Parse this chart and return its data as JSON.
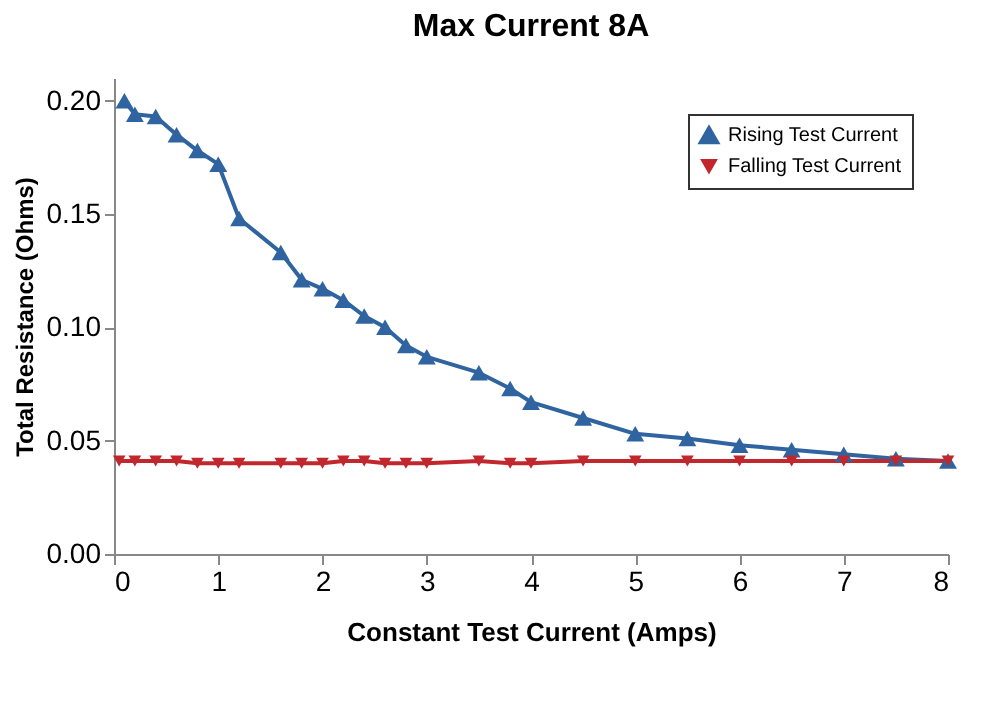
{
  "chart_data": {
    "type": "line",
    "title": "Max Current 8A",
    "xlabel": "Constant Test Current (Amps)",
    "ylabel": "Total Resistance (Ohms)",
    "xlim": [
      0,
      8
    ],
    "xticks": [
      0,
      1,
      2,
      3,
      4,
      5,
      6,
      7,
      8
    ],
    "ylim": [
      0,
      0.21
    ],
    "yticks": [
      {
        "value": 0,
        "label": "0.00"
      },
      0.05,
      {
        "value": 0.1,
        "label": "0.10"
      },
      0.15,
      {
        "value": 0.2,
        "label": "0.20"
      }
    ],
    "grid": false,
    "legend": "top right",
    "line_style": "solid",
    "series": [
      {
        "name": "Rising Test Current",
        "color": "#2f64a0",
        "marker": "triangle",
        "x": [
          0.1,
          0.2,
          0.4,
          0.6,
          0.8,
          1.0,
          1.2,
          1.6,
          1.8,
          2.0,
          2.2,
          2.4,
          2.6,
          2.8,
          3.0,
          3.5,
          3.8,
          4.0,
          4.5,
          5.0,
          5.5,
          6.0,
          6.5,
          7.0,
          7.5,
          8.0
        ],
        "values": [
          0.2,
          0.194,
          0.193,
          0.185,
          0.178,
          0.172,
          0.148,
          0.133,
          0.121,
          0.117,
          0.112,
          0.105,
          0.1,
          0.092,
          0.087,
          0.08,
          0.073,
          0.067,
          0.06,
          0.053,
          0.051,
          0.048,
          0.046,
          0.044,
          0.042,
          0.041
        ]
      },
      {
        "name": "Falling Test Current",
        "color": "#c0282d",
        "marker": "triangle-down",
        "x": [
          0.05,
          0.2,
          0.4,
          0.6,
          0.8,
          1.0,
          1.2,
          1.6,
          1.8,
          2.0,
          2.2,
          2.4,
          2.6,
          2.8,
          3.0,
          3.5,
          3.8,
          4.0,
          4.5,
          5.0,
          5.5,
          6.0,
          6.5,
          7.0,
          7.5,
          8.0
        ],
        "values": [
          0.041,
          0.041,
          0.041,
          0.041,
          0.04,
          0.04,
          0.04,
          0.04,
          0.04,
          0.04,
          0.041,
          0.041,
          0.04,
          0.04,
          0.04,
          0.041,
          0.04,
          0.04,
          0.041,
          0.041,
          0.041,
          0.041,
          0.041,
          0.041,
          0.041,
          0.041
        ]
      }
    ]
  }
}
